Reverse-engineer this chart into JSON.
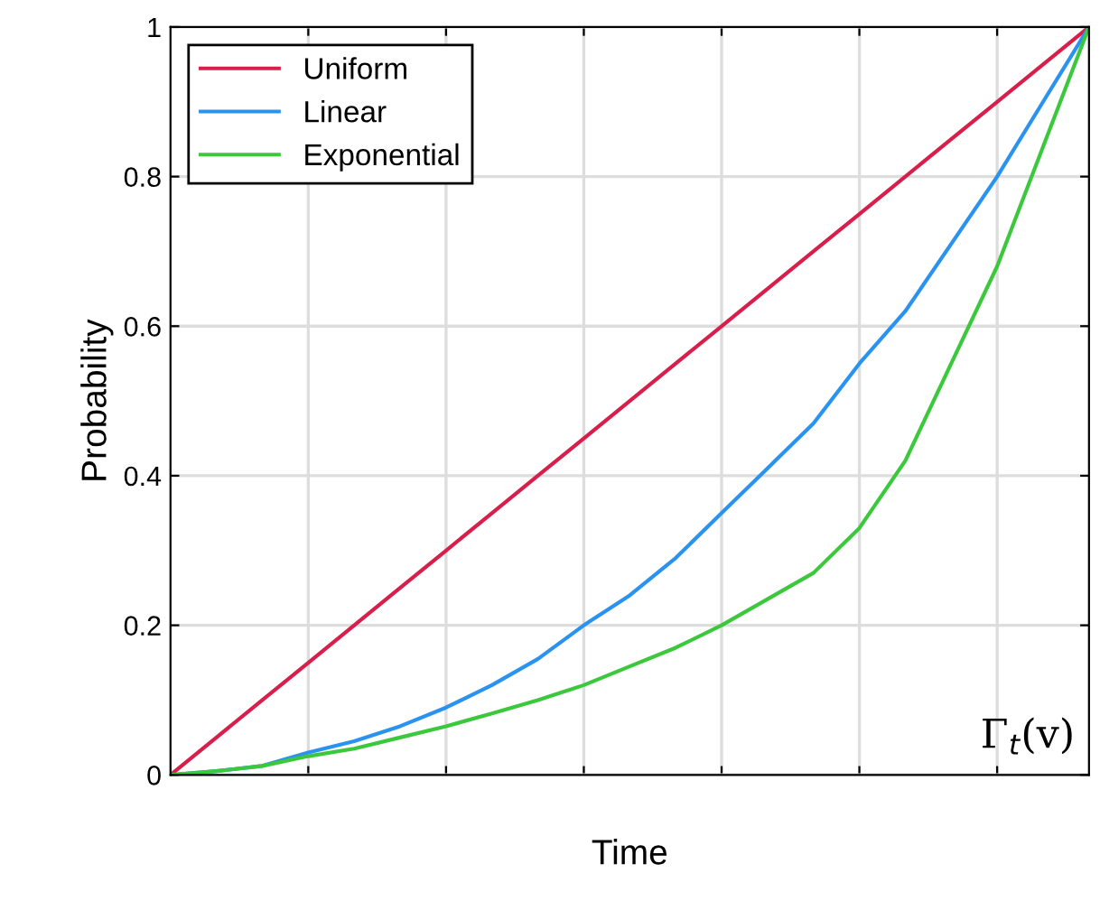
{
  "chart_data": {
    "type": "line",
    "xlabel": "Time",
    "ylabel": "Probability",
    "categories": [
      null,
      null,
      null,
      null,
      null,
      null,
      null,
      null,
      null,
      null,
      null,
      null,
      null,
      null,
      null,
      null,
      null,
      null,
      null,
      null,
      null
    ],
    "ylim": [
      0,
      1
    ],
    "yticks": [
      0,
      0.2,
      0.4,
      0.6,
      0.8,
      1
    ],
    "grid": true,
    "legend": "top left",
    "marker": "none",
    "line_style": "solid",
    "annotations": [
      "Γ$_{t}$(v)"
    ],
    "series": [
      {
        "name": "Uniform",
        "color": "#d81e4a",
        "values": [
          0,
          0.05,
          0.1,
          0.15,
          0.2,
          0.25,
          0.3,
          0.35,
          0.4,
          0.45,
          0.5,
          0.55,
          0.6,
          0.65,
          0.7,
          0.75,
          0.8,
          0.85,
          0.9,
          0.95,
          1
        ]
      },
      {
        "name": "Linear",
        "color": "#2a93f0",
        "values": [
          0,
          0.005,
          0.012,
          0.03,
          0.045,
          0.065,
          0.09,
          0.12,
          0.155,
          0.2,
          0.24,
          0.29,
          0.35,
          0.41,
          0.47,
          0.55,
          0.62,
          0.71,
          0.8,
          0.9,
          1
        ]
      },
      {
        "name": "Exponential",
        "color": "#3cc83c",
        "values": [
          0,
          0.005,
          0.012,
          0.025,
          0.035,
          0.05,
          0.065,
          0.082,
          0.1,
          0.12,
          0.145,
          0.17,
          0.2,
          0.235,
          0.27,
          0.33,
          0.42,
          0.55,
          0.68,
          0.84,
          1
        ]
      }
    ]
  }
}
